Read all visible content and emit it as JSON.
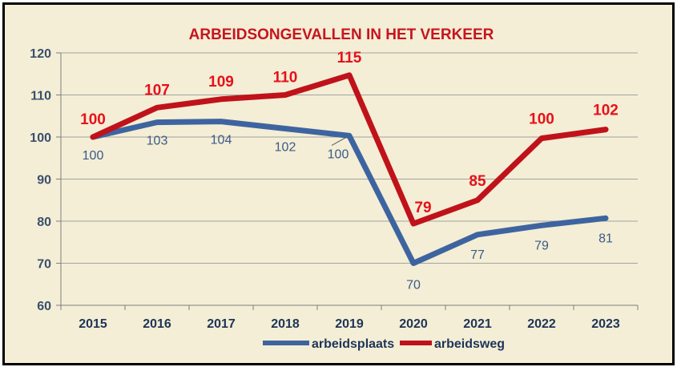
{
  "chart_data": {
    "type": "line",
    "title": "ARBEIDSONGEVALLEN IN HET VERKEER",
    "categories": [
      "2015",
      "2016",
      "2017",
      "2018",
      "2019",
      "2020",
      "2021",
      "2022",
      "2023"
    ],
    "y_ticks": [
      "60",
      "70",
      "80",
      "90",
      "100",
      "110",
      "120"
    ],
    "ylim": [
      60,
      120
    ],
    "grid": "horizontal",
    "legend_position": "bottom",
    "series": [
      {
        "name": "arbeidsplaats",
        "color": "#3e64a0",
        "values": [
          100,
          103.5,
          103.7,
          102,
          100.3,
          70,
          76.8,
          79,
          80.7
        ],
        "labels": [
          "100",
          "103",
          "104",
          "102",
          "100",
          "70",
          "77",
          "79",
          "81"
        ]
      },
      {
        "name": "arbeidsweg",
        "color": "#c0121a",
        "values": [
          100,
          107,
          109,
          110,
          114.7,
          79.4,
          85,
          99.7,
          101.8
        ],
        "labels": [
          "100",
          "107",
          "109",
          "110",
          "115",
          "79",
          "85",
          "100",
          "102"
        ]
      }
    ]
  }
}
